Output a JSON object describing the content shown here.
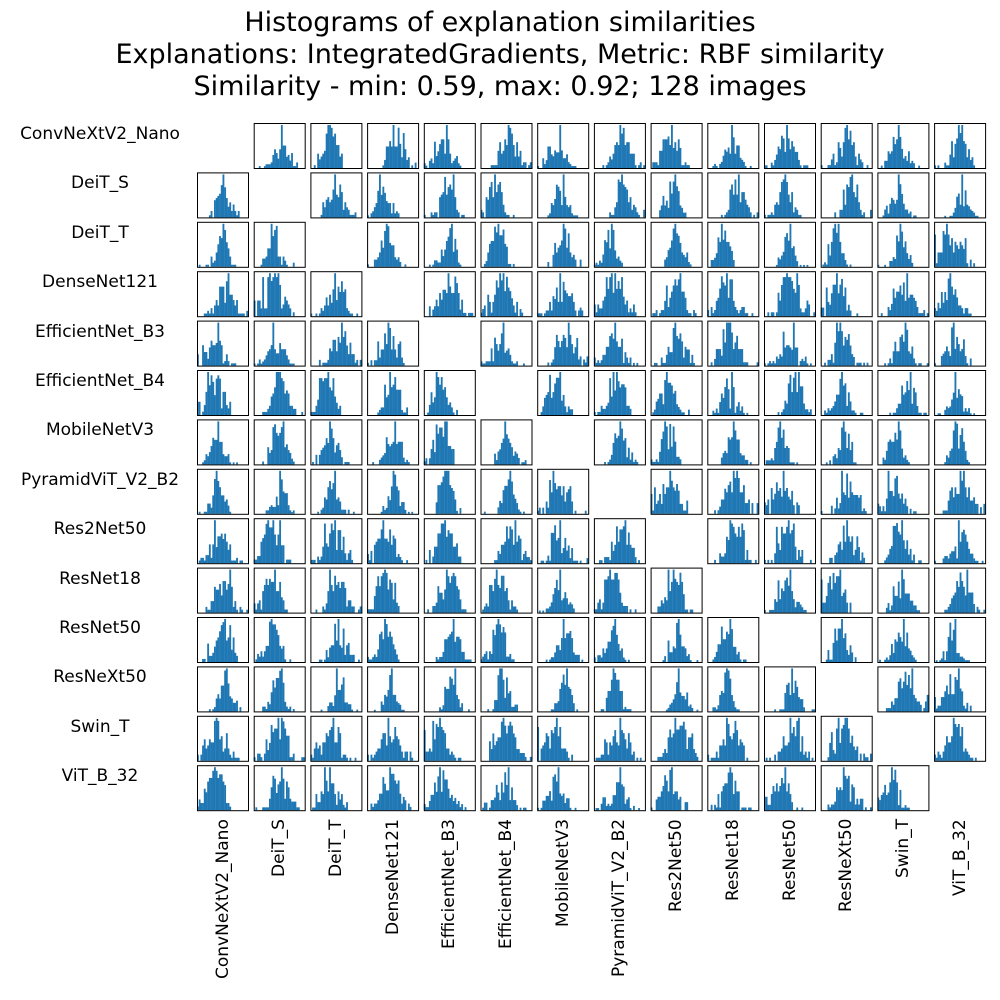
{
  "title": {
    "line1": "Histograms of explanation similarities",
    "line2": "Explanations: IntegratedGradients, Metric: RBF similarity",
    "line3": "Similarity - min: 0.59, max: 0.92; 128 images"
  },
  "chart_data": {
    "type": "histogram-matrix",
    "title": "Histograms of explanation similarities",
    "explanations": "IntegratedGradients",
    "metric": "RBF similarity",
    "similarity_min": 0.59,
    "similarity_max": 0.92,
    "num_images": 128,
    "models": [
      "ConvNeXtV2_Nano",
      "DeiT_S",
      "DeiT_T",
      "DenseNet121",
      "EfficientNet_B3",
      "EfficientNet_B4",
      "MobileNetV3",
      "PyramidViT_V2_B2",
      "Res2Net50",
      "ResNet18",
      "ResNet50",
      "ResNeXt50",
      "Swin_T",
      "ViT_B_32"
    ],
    "diagonal_empty": true,
    "bar_color": "#1f77b4",
    "axis_ticks_shown": false
  }
}
